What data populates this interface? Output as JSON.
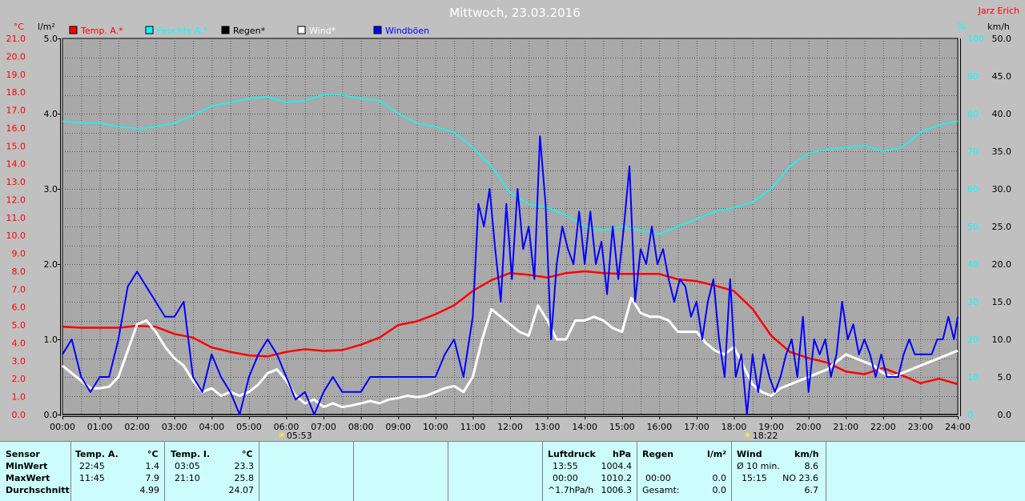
{
  "chart_data": {
    "type": "line",
    "title": "Mittwoch, 23.03.2016",
    "author": "Jarz Erich",
    "axes": {
      "left_temp": {
        "unit": "°C",
        "min": 0,
        "max": 21,
        "ticks": [
          "0.0",
          "1.0",
          "2.0",
          "3.0",
          "4.0",
          "5.0",
          "6.0",
          "7.0",
          "8.0",
          "9.0",
          "10.0",
          "11.0",
          "12.0",
          "13.0",
          "14.0",
          "15.0",
          "16.0",
          "17.0",
          "18.0",
          "19.0",
          "20.0",
          "21.0"
        ]
      },
      "left_rain": {
        "unit": "l/m²",
        "min": 0,
        "max": 5,
        "ticks": [
          "0.0",
          "1.0",
          "2.0",
          "3.0",
          "4.0",
          "5.0"
        ]
      },
      "right_humidity": {
        "unit": "%",
        "min": 0,
        "max": 100,
        "ticks": [
          "0",
          "10",
          "20",
          "30",
          "40",
          "50",
          "60",
          "70",
          "80",
          "90",
          "100"
        ]
      },
      "right_wind": {
        "unit": "km/h",
        "min": 0,
        "max": 50,
        "ticks": [
          "0.0",
          "5.0",
          "10.0",
          "15.0",
          "20.0",
          "25.0",
          "30.0",
          "35.0",
          "40.0",
          "45.0",
          "50.0"
        ]
      },
      "x": {
        "min": 0,
        "max": 24,
        "ticks": [
          "00:00",
          "01:00",
          "02:00",
          "03:00",
          "04:00",
          "05:00",
          "06:00",
          "07:00",
          "08:00",
          "09:00",
          "10:00",
          "11:00",
          "12:00",
          "13:00",
          "14:00",
          "15:00",
          "16:00",
          "17:00",
          "18:00",
          "19:00",
          "20:00",
          "21:00",
          "22:00",
          "23:00",
          "24:00"
        ]
      }
    },
    "grid": true,
    "legend": [
      {
        "name": "Temp. A.*",
        "color": "#ff0000"
      },
      {
        "name": "Feuchte A.*",
        "color": "#00ffff"
      },
      {
        "name": "Regen*",
        "color": "#000000"
      },
      {
        "name": "Wind*",
        "color": "#ffffff"
      },
      {
        "name": "Windböen",
        "color": "#0000ff"
      }
    ],
    "markers": [
      {
        "label": "05:53",
        "hour": 5.88
      },
      {
        "label": "18:22",
        "hour": 18.37
      }
    ],
    "series": [
      {
        "name": "Temp. A.*",
        "axis": "left_temp",
        "color": "#ff0000",
        "x": [
          0,
          0.5,
          1,
          1.5,
          2,
          2.5,
          3,
          3.5,
          4,
          4.5,
          5,
          5.5,
          6,
          6.5,
          7,
          7.5,
          8,
          8.5,
          9,
          9.5,
          10,
          10.5,
          11,
          11.5,
          12,
          12.5,
          13,
          13.5,
          14,
          14.5,
          15,
          15.5,
          16,
          16.5,
          17,
          17.5,
          18,
          18.5,
          19,
          19.5,
          20,
          20.5,
          21,
          21.5,
          22,
          22.5,
          23,
          23.5,
          24
        ],
        "y": [
          4.9,
          4.85,
          4.85,
          4.85,
          4.95,
          4.9,
          4.5,
          4.3,
          3.75,
          3.5,
          3.3,
          3.25,
          3.5,
          3.65,
          3.55,
          3.6,
          3.9,
          4.3,
          5.0,
          5.2,
          5.6,
          6.1,
          6.9,
          7.5,
          7.9,
          7.8,
          7.65,
          7.9,
          8.0,
          7.9,
          7.85,
          7.85,
          7.85,
          7.55,
          7.45,
          7.2,
          6.9,
          5.9,
          4.4,
          3.5,
          3.15,
          2.9,
          2.4,
          2.25,
          2.6,
          2.2,
          1.75,
          2.0,
          1.7
        ]
      },
      {
        "name": "Feuchte A.*",
        "axis": "right_humidity",
        "color": "#00ffff",
        "x": [
          0,
          0.5,
          1,
          1.5,
          2,
          2.5,
          3,
          3.5,
          4,
          4.5,
          5,
          5.5,
          6,
          6.5,
          7,
          7.5,
          8,
          8.5,
          9,
          9.5,
          10,
          10.5,
          11,
          11.5,
          12,
          12.5,
          13,
          13.5,
          14,
          14.5,
          15,
          15.5,
          16,
          16.5,
          17,
          17.5,
          18,
          18.5,
          19,
          19.5,
          20,
          20.5,
          21,
          21.5,
          22,
          22.5,
          23,
          23.5,
          24
        ],
        "y": [
          78,
          77.5,
          77.5,
          76.5,
          76,
          76.5,
          77.5,
          79.5,
          82,
          83,
          84,
          84.5,
          83,
          83.5,
          85,
          85,
          84,
          83.5,
          80,
          77.5,
          76.5,
          75,
          71,
          66,
          59,
          56,
          55,
          53,
          50,
          49,
          50,
          49,
          48,
          50,
          52,
          54,
          55,
          56.5,
          60,
          66,
          69.5,
          70.5,
          71,
          71.5,
          70,
          71,
          75,
          77,
          78
        ]
      },
      {
        "name": "Regen*",
        "axis": "left_rain",
        "color": "#000000",
        "x": [
          0,
          24
        ],
        "y": [
          0,
          0
        ]
      },
      {
        "name": "Wind*",
        "axis": "right_wind",
        "color": "#ffffff",
        "x": [
          0,
          0.25,
          0.5,
          0.75,
          1,
          1.25,
          1.5,
          1.75,
          2,
          2.25,
          2.5,
          2.75,
          3,
          3.25,
          3.5,
          3.75,
          4,
          4.25,
          4.5,
          4.75,
          5,
          5.25,
          5.5,
          5.75,
          6,
          6.25,
          6.5,
          6.75,
          7,
          7.25,
          7.5,
          7.75,
          8,
          8.25,
          8.5,
          8.75,
          9,
          9.25,
          9.5,
          9.75,
          10,
          10.25,
          10.5,
          10.75,
          11,
          11.25,
          11.5,
          11.75,
          12,
          12.25,
          12.5,
          12.75,
          13,
          13.25,
          13.5,
          13.75,
          14,
          14.25,
          14.5,
          14.75,
          15,
          15.25,
          15.5,
          15.75,
          16,
          16.25,
          16.5,
          16.75,
          17,
          17.25,
          17.5,
          17.75,
          18,
          18.25,
          18.5,
          18.75,
          19,
          19.25,
          19.5,
          19.75,
          20,
          20.25,
          20.5,
          20.75,
          21,
          21.25,
          21.5,
          21.75,
          22,
          22.25,
          22.5,
          22.75,
          23,
          23.25,
          23.5,
          23.75,
          24
        ],
        "y": [
          6.5,
          5.5,
          4.5,
          3.5,
          3.5,
          3.7,
          5,
          8.5,
          12,
          12.5,
          11,
          9,
          7.5,
          6.5,
          4.5,
          3,
          3.5,
          2.5,
          3,
          2.5,
          3,
          4,
          5.5,
          6,
          4.5,
          2.5,
          1.5,
          2,
          1,
          1.5,
          1,
          1.2,
          1.5,
          1.8,
          1.5,
          2,
          2.2,
          2.5,
          2.3,
          2.5,
          3,
          3.5,
          3.8,
          3,
          5,
          10,
          14,
          13,
          12,
          11,
          10.5,
          14.5,
          12.5,
          10,
          10,
          12.5,
          12.5,
          13,
          12.5,
          11.5,
          11,
          15.5,
          13.5,
          13,
          13,
          12.5,
          11,
          11,
          11,
          9.5,
          8.5,
          8,
          9,
          6.5,
          4,
          3,
          2.5,
          3.5,
          4,
          4.5,
          5,
          5.5,
          6,
          7,
          8,
          7.5,
          7,
          6.5,
          5.5,
          5,
          5.5,
          6,
          6.5,
          7,
          7.5,
          8,
          8.5
        ]
      },
      {
        "name": "Windböen",
        "axis": "right_wind",
        "color": "#0000ff",
        "x": [
          0,
          0.25,
          0.5,
          0.75,
          1,
          1.25,
          1.5,
          1.75,
          2,
          2.25,
          2.5,
          2.75,
          3,
          3.25,
          3.5,
          3.75,
          4,
          4.25,
          4.5,
          4.75,
          5,
          5.25,
          5.5,
          5.75,
          6,
          6.25,
          6.5,
          6.75,
          7,
          7.25,
          7.5,
          7.75,
          8,
          8.25,
          8.5,
          8.75,
          9,
          9.25,
          9.5,
          9.75,
          10,
          10.25,
          10.5,
          10.75,
          11,
          11.15,
          11.3,
          11.45,
          11.6,
          11.75,
          11.9,
          12.05,
          12.2,
          12.35,
          12.5,
          12.65,
          12.8,
          12.95,
          13.1,
          13.25,
          13.4,
          13.55,
          13.7,
          13.85,
          14,
          14.15,
          14.3,
          14.45,
          14.6,
          14.75,
          14.9,
          15.05,
          15.2,
          15.35,
          15.5,
          15.65,
          15.8,
          15.95,
          16.1,
          16.25,
          16.4,
          16.55,
          16.7,
          16.85,
          17,
          17.15,
          17.3,
          17.45,
          17.6,
          17.75,
          17.9,
          18.05,
          18.2,
          18.35,
          18.5,
          18.65,
          18.8,
          18.95,
          19.1,
          19.25,
          19.4,
          19.55,
          19.7,
          19.85,
          20,
          20.15,
          20.3,
          20.45,
          20.6,
          20.75,
          20.9,
          21.05,
          21.2,
          21.35,
          21.5,
          21.65,
          21.8,
          21.95,
          22.1,
          22.25,
          22.4,
          22.55,
          22.7,
          22.85,
          23,
          23.15,
          23.3,
          23.45,
          23.6,
          23.75,
          23.9,
          24
        ],
        "y": [
          8,
          10,
          5,
          3,
          5,
          5,
          10,
          17,
          19,
          17,
          15,
          13,
          13,
          15,
          5,
          3,
          8,
          5,
          3,
          0,
          5,
          8,
          10,
          8,
          5,
          2,
          3,
          0,
          3,
          5,
          3,
          3,
          3,
          5,
          5,
          5,
          5,
          5,
          5,
          5,
          5,
          8,
          10,
          5,
          13,
          28,
          25,
          30,
          22,
          15,
          28,
          18,
          30,
          22,
          25,
          18,
          37,
          28,
          10,
          20,
          25,
          22,
          20,
          27,
          20,
          27,
          20,
          23,
          16,
          25,
          18,
          25,
          33,
          15,
          22,
          20,
          25,
          20,
          22,
          18,
          15,
          18,
          17,
          13,
          15,
          10,
          15,
          18,
          10,
          5,
          18,
          5,
          8,
          0,
          8,
          3,
          8,
          5,
          3,
          5,
          8,
          10,
          5,
          13,
          3,
          10,
          8,
          10,
          5,
          8,
          15,
          10,
          12,
          8,
          10,
          8,
          5,
          8,
          5,
          5,
          5,
          8,
          10,
          8,
          8,
          8,
          8,
          10,
          10,
          13,
          10,
          13
        ]
      }
    ]
  },
  "table": {
    "sensor_header": "Sensor",
    "row_min": "MinWert",
    "row_max": "MaxWert",
    "row_avg": "Durchschnitt",
    "temp_a": {
      "title": "Temp. A.",
      "unit": "°C",
      "min_time": "22:45",
      "min_val": "1.4",
      "max_time": "11:45",
      "max_val": "7.9",
      "avg": "4.99"
    },
    "temp_i": {
      "title": "Temp. I.",
      "unit": "°C",
      "min_time": "03:05",
      "min_val": "23.3",
      "max_time": "21:10",
      "max_val": "25.8",
      "avg": "24.07"
    },
    "pressure": {
      "title": "Luftdruck",
      "unit": "hPa",
      "min_time": "13:55",
      "min_val": "1004.4",
      "max_time": "00:00",
      "max_val": "1010.2",
      "trend": "^1.7hPa/h",
      "avg": "1006.3"
    },
    "rain": {
      "title": "Regen",
      "unit": "l/m²",
      "max_time": "00:00",
      "max_val": "0.0",
      "total_label": "Gesamt:",
      "total_val": "0.0"
    },
    "wind": {
      "title": "Wind",
      "unit": "km/h",
      "avg10_label": "Ø 10 min.",
      "avg10_val": "8.6",
      "gust_time": "15:15",
      "gust_val": "NO 23.6",
      "avg": "6.7"
    }
  }
}
